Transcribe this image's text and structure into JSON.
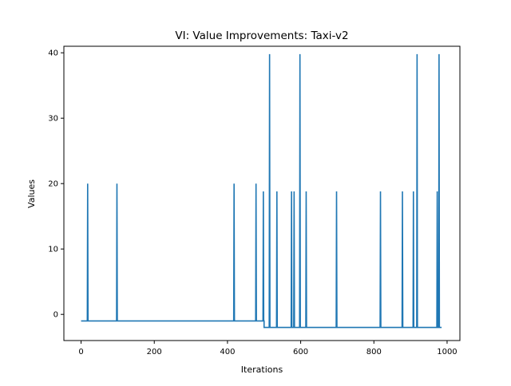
{
  "chart_data": {
    "type": "line",
    "title": "VI: Value Improvements: Taxi-v2",
    "xlabel": "Iterations",
    "ylabel": "Values",
    "xlim": [
      -47,
      1035
    ],
    "ylim": [
      -4,
      41
    ],
    "xticks": [
      0,
      200,
      400,
      600,
      800,
      1000
    ],
    "yticks": [
      0,
      10,
      20,
      30,
      40
    ],
    "grid": false,
    "color": "#1f77b4",
    "series": [
      {
        "baseline": [
          {
            "from": 0,
            "to": 500,
            "value": -1
          },
          {
            "from": 500,
            "to": 985,
            "value": -2
          }
        ],
        "spikes": [
          {
            "x": 17,
            "value": 20
          },
          {
            "x": 97,
            "value": 20
          },
          {
            "x": 417,
            "value": 20
          },
          {
            "x": 477,
            "value": 20
          },
          {
            "x": 497,
            "value": 18.8
          },
          {
            "x": 514,
            "value": 39.8
          },
          {
            "x": 534,
            "value": 18.8
          },
          {
            "x": 574,
            "value": 18.8
          },
          {
            "x": 581,
            "value": 18.8
          },
          {
            "x": 597,
            "value": 39.8
          },
          {
            "x": 614,
            "value": 18.8
          },
          {
            "x": 697,
            "value": 18.8
          },
          {
            "x": 817,
            "value": 18.8
          },
          {
            "x": 877,
            "value": 18.8
          },
          {
            "x": 907,
            "value": 18.8
          },
          {
            "x": 917,
            "value": 39.8
          },
          {
            "x": 972,
            "value": 18.8
          },
          {
            "x": 977,
            "value": 39.8
          }
        ]
      }
    ]
  }
}
